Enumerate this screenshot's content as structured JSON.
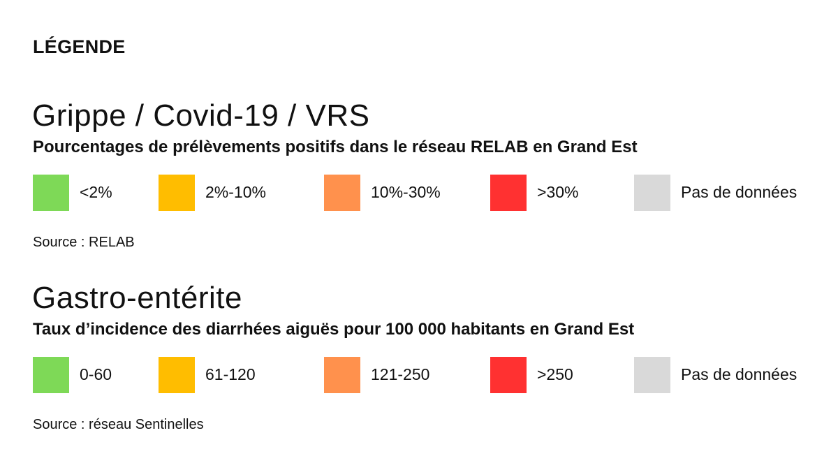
{
  "legend_heading": "LÉGENDE",
  "sections": [
    {
      "title": "Grippe / Covid-19 / VRS",
      "subtitle": "Pourcentages de prélèvements positifs dans le réseau RELAB en Grand Est",
      "items": [
        {
          "label": "<2%",
          "color": "#7ed957"
        },
        {
          "label": "2%-10%",
          "color": "#ffbd00"
        },
        {
          "label": "10%-30%",
          "color": "#ff914d"
        },
        {
          "label": ">30%",
          "color": "#ff3131"
        },
        {
          "label": "Pas de données",
          "color": "#d9d9d9"
        }
      ],
      "source": "Source : RELAB"
    },
    {
      "title": "Gastro-entérite",
      "subtitle": "Taux d’incidence des diarrhées aiguës pour 100 000 habitants en Grand Est",
      "items": [
        {
          "label": "0-60",
          "color": "#7ed957"
        },
        {
          "label": "61-120",
          "color": "#ffbd00"
        },
        {
          "label": "121-250",
          "color": "#ff914d"
        },
        {
          "label": ">250",
          "color": "#ff3131"
        },
        {
          "label": "Pas de données",
          "color": "#d9d9d9"
        }
      ],
      "source": "Source : réseau Sentinelles"
    }
  ]
}
